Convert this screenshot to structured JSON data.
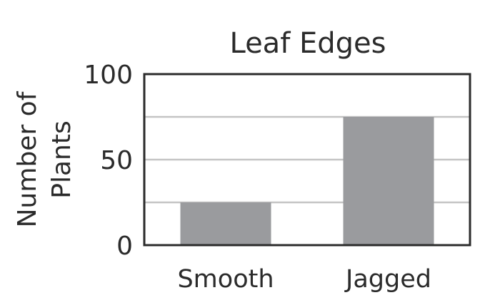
{
  "chart_data": {
    "type": "bar",
    "title": "Leaf Edges",
    "xlabel": "",
    "ylabel": [
      "Number of",
      "Plants"
    ],
    "categories": [
      "Smooth",
      "Jagged"
    ],
    "values": [
      25,
      75
    ],
    "ylim": [
      0,
      100
    ],
    "yticks": [
      "0",
      "50",
      "100"
    ],
    "grid_values": [
      25,
      50,
      75
    ],
    "grid": true,
    "colors": {
      "bar": "#9a9b9e",
      "grid": "#c4c4c4",
      "axis": "#2b2b2b",
      "text": "#2b2b2b"
    }
  }
}
